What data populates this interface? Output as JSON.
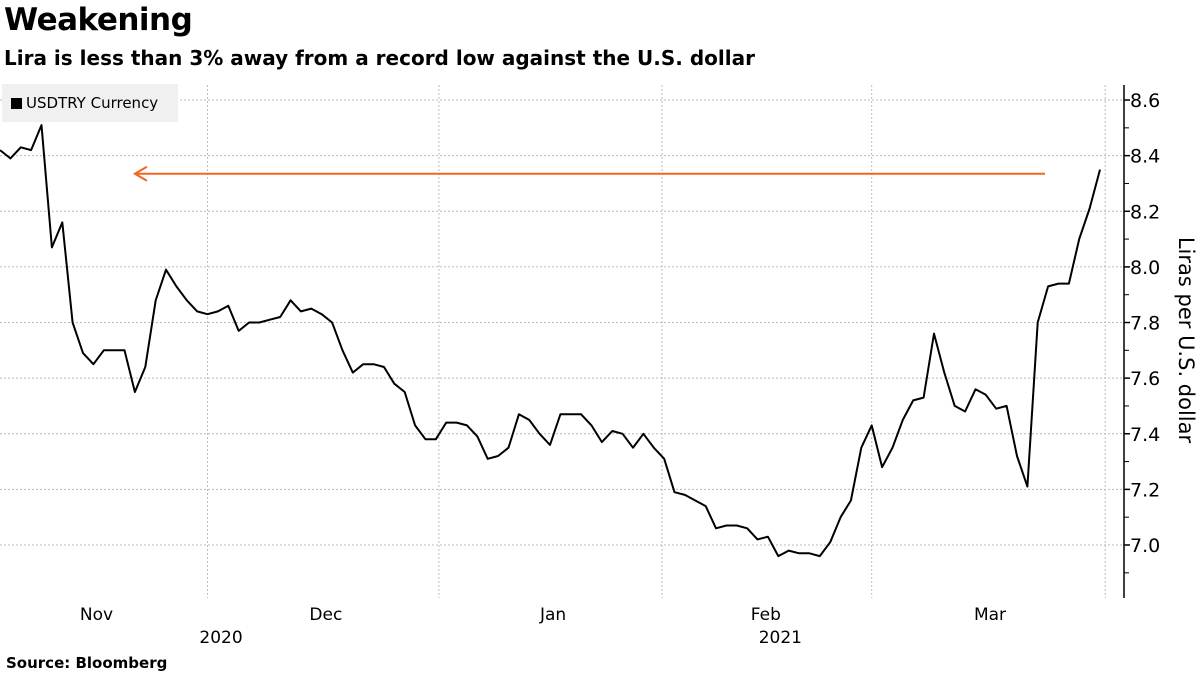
{
  "title": "Weakening",
  "subtitle": "Lira is less than 3% away from a record low against the U.S. dollar",
  "source": "Source:  Bloomberg",
  "colors": {
    "line": "#000000",
    "arrow": "#f26522",
    "grid": "#bbbbbb",
    "legend_bg": "#f0f0f0"
  },
  "chart_data": {
    "type": "line",
    "title": "Weakening",
    "ylabel": "Liras per U.S. dollar",
    "xlabel": "",
    "ylim": [
      6.82,
      8.66
    ],
    "grid": true,
    "legend": {
      "position": "top-left",
      "entries": [
        "USDTRY Currency"
      ]
    },
    "y_ticks": [
      "8.6",
      "8.4",
      "8.2",
      "8.0",
      "7.8",
      "7.6",
      "7.4",
      "7.2",
      "7.0"
    ],
    "x_range": [
      0,
      106.5
    ],
    "month_ticks": [
      {
        "label": "Nov",
        "x": 9.3
      },
      {
        "label": "Dec",
        "x": 31.4
      },
      {
        "label": "Jan",
        "x": 53.3
      },
      {
        "label": "Feb",
        "x": 73.8
      },
      {
        "label": "Mar",
        "x": 95.4
      }
    ],
    "year_ticks": [
      {
        "label": "2020",
        "x": 21.3
      },
      {
        "label": "2021",
        "x": 75.2
      }
    ],
    "month_boundaries": [
      20,
      42.3,
      63.8,
      84,
      106.5
    ],
    "series": [
      {
        "name": "USDTRY Currency",
        "values": [
          8.42,
          8.39,
          8.43,
          8.42,
          8.51,
          8.07,
          8.16,
          7.8,
          7.69,
          7.65,
          7.7,
          7.7,
          7.7,
          7.55,
          7.64,
          7.88,
          7.99,
          7.93,
          7.88,
          7.84,
          7.83,
          7.84,
          7.86,
          7.77,
          7.8,
          7.8,
          7.81,
          7.82,
          7.88,
          7.84,
          7.85,
          7.83,
          7.8,
          7.7,
          7.62,
          7.65,
          7.65,
          7.64,
          7.58,
          7.55,
          7.43,
          7.38,
          7.38,
          7.44,
          7.44,
          7.43,
          7.39,
          7.31,
          7.32,
          7.35,
          7.47,
          7.45,
          7.4,
          7.36,
          7.47,
          7.47,
          7.47,
          7.43,
          7.37,
          7.41,
          7.4,
          7.35,
          7.4,
          7.35,
          7.31,
          7.19,
          7.18,
          7.16,
          7.14,
          7.06,
          7.07,
          7.07,
          7.06,
          7.02,
          7.03,
          6.96,
          6.98,
          6.97,
          6.97,
          6.96,
          7.01,
          7.1,
          7.16,
          7.35,
          7.43,
          7.28,
          7.35,
          7.45,
          7.52,
          7.53,
          7.76,
          7.62,
          7.5,
          7.48,
          7.56,
          7.54,
          7.49,
          7.5,
          7.32,
          7.21,
          7.8,
          7.93,
          7.94,
          7.94,
          8.1,
          8.21,
          8.35
        ]
      }
    ],
    "annotations": [
      {
        "type": "arrow",
        "value": 8.335,
        "x_from": 100.7,
        "x_to": 13
      }
    ]
  }
}
